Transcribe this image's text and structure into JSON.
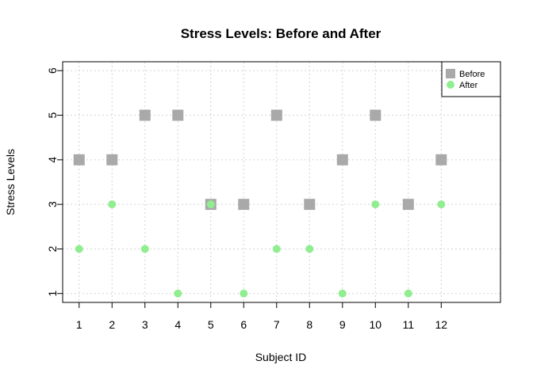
{
  "chart_data": {
    "type": "scatter",
    "title": "Stress Levels: Before and After",
    "xlabel": "Subject ID",
    "ylabel": "Stress Levels",
    "x": [
      1,
      2,
      3,
      4,
      5,
      6,
      7,
      8,
      9,
      10,
      11,
      12
    ],
    "xlim": [
      0.5,
      13.8
    ],
    "ylim": [
      0.8,
      6.2
    ],
    "xticks": [
      "1",
      "2",
      "3",
      "4",
      "5",
      "6",
      "7",
      "8",
      "9",
      "10",
      "11",
      "12"
    ],
    "yticks": [
      "1",
      "2",
      "3",
      "4",
      "5",
      "6"
    ],
    "grid": true,
    "legend_position": "top-right",
    "series": [
      {
        "name": "Before",
        "marker": "square",
        "color": "#A9A9A9",
        "values": [
          4,
          4,
          5,
          5,
          3,
          3,
          5,
          3,
          4,
          5,
          3,
          4
        ]
      },
      {
        "name": "After",
        "marker": "circle",
        "color": "#90EE90",
        "values": [
          2,
          3,
          2,
          1,
          3,
          1,
          2,
          2,
          1,
          3,
          1,
          3
        ]
      }
    ]
  }
}
